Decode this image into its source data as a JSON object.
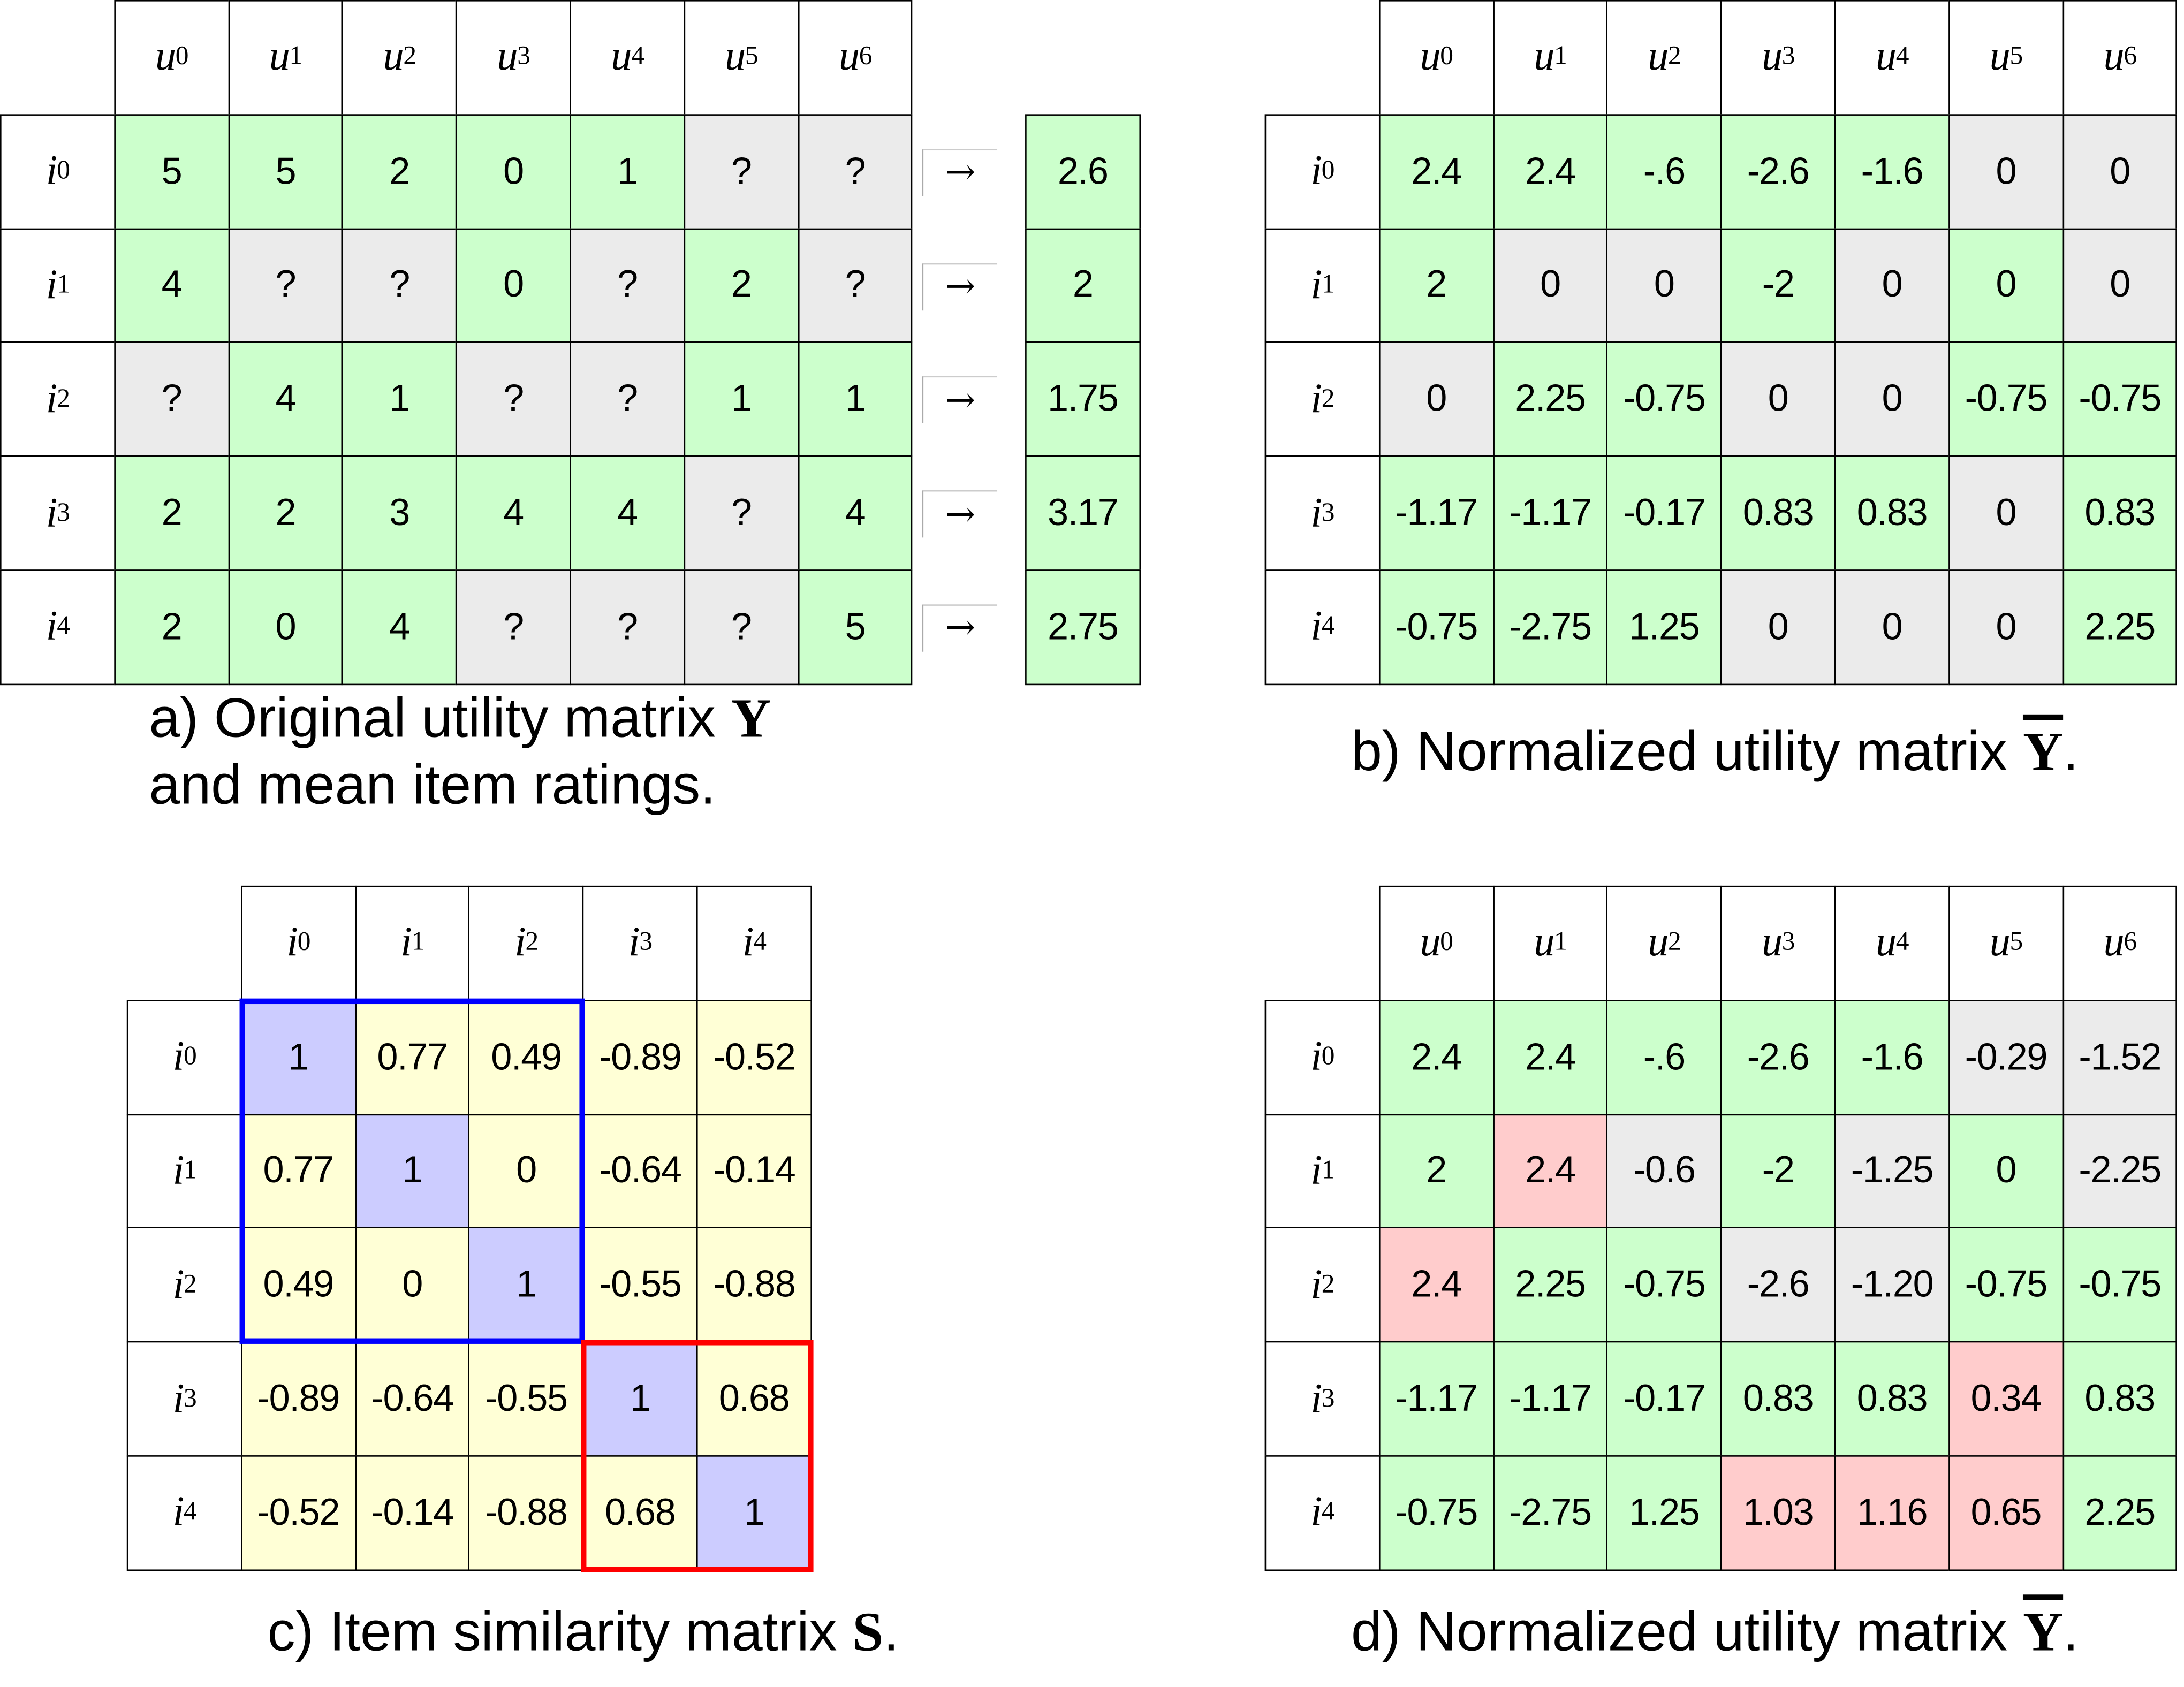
{
  "colors": {
    "g": "#ccffcc",
    "x": "#ebebeb",
    "p": "#ffcccc",
    "y": "#ffffd6",
    "b": "#ccccff",
    "highlight_blue": "#0000ff",
    "highlight_red": "#ff0000"
  },
  "panels": [
    {
      "id": "a",
      "cols": [
        {
          "base": "u",
          "sub": "0"
        },
        {
          "base": "u",
          "sub": "1"
        },
        {
          "base": "u",
          "sub": "2"
        },
        {
          "base": "u",
          "sub": "3"
        },
        {
          "base": "u",
          "sub": "4"
        },
        {
          "base": "u",
          "sub": "5"
        },
        {
          "base": "u",
          "sub": "6"
        }
      ],
      "rows": [
        {
          "label": {
            "base": "i",
            "sub": "0"
          },
          "cells": [
            "5",
            "5",
            "2",
            "0",
            "1",
            "?",
            "?"
          ],
          "states": [
            "g",
            "g",
            "g",
            "g",
            "g",
            "x",
            "x"
          ]
        },
        {
          "label": {
            "base": "i",
            "sub": "1"
          },
          "cells": [
            "4",
            "?",
            "?",
            "0",
            "?",
            "2",
            "?"
          ],
          "states": [
            "g",
            "x",
            "x",
            "g",
            "x",
            "g",
            "x"
          ]
        },
        {
          "label": {
            "base": "i",
            "sub": "2"
          },
          "cells": [
            "?",
            "4",
            "1",
            "?",
            "?",
            "1",
            "1"
          ],
          "states": [
            "x",
            "g",
            "g",
            "x",
            "x",
            "g",
            "g"
          ]
        },
        {
          "label": {
            "base": "i",
            "sub": "3"
          },
          "cells": [
            "2",
            "2",
            "3",
            "4",
            "4",
            "?",
            "4"
          ],
          "states": [
            "g",
            "g",
            "g",
            "g",
            "g",
            "x",
            "g"
          ]
        },
        {
          "label": {
            "base": "i",
            "sub": "4"
          },
          "cells": [
            "2",
            "0",
            "4",
            "?",
            "?",
            "?",
            "5"
          ],
          "states": [
            "g",
            "g",
            "g",
            "x",
            "x",
            "x",
            "g"
          ]
        }
      ],
      "means": [
        "2.6",
        "2",
        "1.75",
        "3.17",
        "2.75"
      ],
      "caption": {
        "text": "a) Original utility matrix ",
        "symbol": "Y",
        "line2": "and mean item ratings."
      }
    },
    {
      "id": "b",
      "cols": [
        {
          "base": "u",
          "sub": "0"
        },
        {
          "base": "u",
          "sub": "1"
        },
        {
          "base": "u",
          "sub": "2"
        },
        {
          "base": "u",
          "sub": "3"
        },
        {
          "base": "u",
          "sub": "4"
        },
        {
          "base": "u",
          "sub": "5"
        },
        {
          "base": "u",
          "sub": "6"
        }
      ],
      "rows": [
        {
          "label": {
            "base": "i",
            "sub": "0"
          },
          "cells": [
            "2.4",
            "2.4",
            "-.6",
            "-2.6",
            "-1.6",
            "0",
            "0"
          ],
          "states": [
            "g",
            "g",
            "g",
            "g",
            "g",
            "x",
            "x"
          ]
        },
        {
          "label": {
            "base": "i",
            "sub": "1"
          },
          "cells": [
            "2",
            "0",
            "0",
            "-2",
            "0",
            "0",
            "0"
          ],
          "states": [
            "g",
            "x",
            "x",
            "g",
            "x",
            "g",
            "x"
          ]
        },
        {
          "label": {
            "base": "i",
            "sub": "2"
          },
          "cells": [
            "0",
            "2.25",
            "-0.75",
            "0",
            "0",
            "-0.75",
            "-0.75"
          ],
          "states": [
            "x",
            "g",
            "g",
            "x",
            "x",
            "g",
            "g"
          ]
        },
        {
          "label": {
            "base": "i",
            "sub": "3"
          },
          "cells": [
            "-1.17",
            "-1.17",
            "-0.17",
            "0.83",
            "0.83",
            "0",
            "0.83"
          ],
          "states": [
            "g",
            "g",
            "g",
            "g",
            "g",
            "x",
            "g"
          ]
        },
        {
          "label": {
            "base": "i",
            "sub": "4"
          },
          "cells": [
            "-0.75",
            "-2.75",
            "1.25",
            "0",
            "0",
            "0",
            "2.25"
          ],
          "states": [
            "g",
            "g",
            "g",
            "x",
            "x",
            "x",
            "g"
          ]
        }
      ],
      "caption": {
        "text": "b) Normalized utility matrix ",
        "symbol": "Y",
        "suffix": "."
      }
    },
    {
      "id": "c",
      "cols": [
        {
          "base": "i",
          "sub": "0"
        },
        {
          "base": "i",
          "sub": "1"
        },
        {
          "base": "i",
          "sub": "2"
        },
        {
          "base": "i",
          "sub": "3"
        },
        {
          "base": "i",
          "sub": "4"
        }
      ],
      "rows": [
        {
          "label": {
            "base": "i",
            "sub": "0"
          },
          "cells": [
            "1",
            "0.77",
            "0.49",
            "-0.89",
            "-0.52"
          ],
          "states": [
            "b",
            "y",
            "y",
            "y",
            "y"
          ]
        },
        {
          "label": {
            "base": "i",
            "sub": "1"
          },
          "cells": [
            "0.77",
            "1",
            "0",
            "-0.64",
            "-0.14"
          ],
          "states": [
            "y",
            "b",
            "y",
            "y",
            "y"
          ]
        },
        {
          "label": {
            "base": "i",
            "sub": "2"
          },
          "cells": [
            "0.49",
            "0",
            "1",
            "-0.55",
            "-0.88"
          ],
          "states": [
            "y",
            "y",
            "b",
            "y",
            "y"
          ]
        },
        {
          "label": {
            "base": "i",
            "sub": "3"
          },
          "cells": [
            "-0.89",
            "-0.64",
            "-0.55",
            "1",
            "0.68"
          ],
          "states": [
            "y",
            "y",
            "y",
            "b",
            "y"
          ]
        },
        {
          "label": {
            "base": "i",
            "sub": "4"
          },
          "cells": [
            "-0.52",
            "-0.14",
            "-0.88",
            "0.68",
            "1"
          ],
          "states": [
            "y",
            "y",
            "y",
            "y",
            "b"
          ]
        }
      ],
      "caption": {
        "text": "c) Item similarity matrix ",
        "symbol": "S",
        "suffix": "."
      }
    },
    {
      "id": "d",
      "cols": [
        {
          "base": "u",
          "sub": "0"
        },
        {
          "base": "u",
          "sub": "1"
        },
        {
          "base": "u",
          "sub": "2"
        },
        {
          "base": "u",
          "sub": "3"
        },
        {
          "base": "u",
          "sub": "4"
        },
        {
          "base": "u",
          "sub": "5"
        },
        {
          "base": "u",
          "sub": "6"
        }
      ],
      "rows": [
        {
          "label": {
            "base": "i",
            "sub": "0"
          },
          "cells": [
            "2.4",
            "2.4",
            "-.6",
            "-2.6",
            "-1.6",
            "-0.29",
            "-1.52"
          ],
          "states": [
            "g",
            "g",
            "g",
            "g",
            "g",
            "x",
            "x"
          ]
        },
        {
          "label": {
            "base": "i",
            "sub": "1"
          },
          "cells": [
            "2",
            "2.4",
            "-0.6",
            "-2",
            "-1.25",
            "0",
            "-2.25"
          ],
          "states": [
            "g",
            "p",
            "x",
            "g",
            "x",
            "g",
            "x"
          ]
        },
        {
          "label": {
            "base": "i",
            "sub": "2"
          },
          "cells": [
            "2.4",
            "2.25",
            "-0.75",
            "-2.6",
            "-1.20",
            "-0.75",
            "-0.75"
          ],
          "states": [
            "p",
            "g",
            "g",
            "x",
            "x",
            "g",
            "g"
          ]
        },
        {
          "label": {
            "base": "i",
            "sub": "3"
          },
          "cells": [
            "-1.17",
            "-1.17",
            "-0.17",
            "0.83",
            "0.83",
            "0.34",
            "0.83"
          ],
          "states": [
            "g",
            "g",
            "g",
            "g",
            "g",
            "p",
            "g"
          ]
        },
        {
          "label": {
            "base": "i",
            "sub": "4"
          },
          "cells": [
            "-0.75",
            "-2.75",
            "1.25",
            "1.03",
            "1.16",
            "0.65",
            "2.25"
          ],
          "states": [
            "g",
            "g",
            "g",
            "p",
            "p",
            "p",
            "g"
          ]
        }
      ],
      "caption": {
        "text": "d) Normalized utility matrix ",
        "symbol": "Y",
        "suffix": "."
      }
    }
  ]
}
